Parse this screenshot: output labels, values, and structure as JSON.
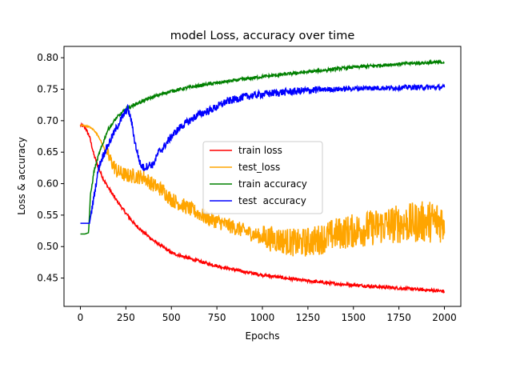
{
  "chart_data": {
    "type": "line",
    "title": "model Loss, accuracy over time",
    "xlabel": "Epochs",
    "ylabel": "Loss & accuracy",
    "xlim": [
      -90,
      2090
    ],
    "ylim": [
      0.405,
      0.818
    ],
    "xticks": [
      0,
      250,
      500,
      750,
      1000,
      1250,
      1500,
      1750,
      2000
    ],
    "yticks": [
      0.45,
      0.5,
      0.55,
      0.6,
      0.65,
      0.7,
      0.75,
      0.8
    ],
    "ytick_labels": [
      "0.45",
      "0.50",
      "0.55",
      "0.60",
      "0.65",
      "0.70",
      "0.75",
      "0.80"
    ],
    "grid": false,
    "legend_position": "center",
    "series": [
      {
        "name": "train loss",
        "color": "#ff0000",
        "noise": 0.0025,
        "x": [
          0,
          25,
          50,
          75,
          100,
          125,
          150,
          200,
          250,
          300,
          350,
          400,
          450,
          500,
          600,
          700,
          800,
          900,
          1000,
          1100,
          1200,
          1300,
          1400,
          1500,
          1600,
          1700,
          1800,
          1900,
          2000
        ],
        "y": [
          0.693,
          0.69,
          0.675,
          0.645,
          0.625,
          0.608,
          0.595,
          0.573,
          0.553,
          0.535,
          0.522,
          0.51,
          0.5,
          0.49,
          0.481,
          0.473,
          0.466,
          0.46,
          0.455,
          0.451,
          0.447,
          0.444,
          0.441,
          0.439,
          0.437,
          0.435,
          0.433,
          0.431,
          0.429
        ]
      },
      {
        "name": "test_loss",
        "color": "#ffa500",
        "noise": 0.012,
        "x": [
          0,
          25,
          50,
          75,
          100,
          125,
          150,
          200,
          250,
          300,
          350,
          400,
          450,
          500,
          600,
          700,
          800,
          900,
          1000,
          1100,
          1200,
          1300,
          1400,
          1500,
          1600,
          1700,
          1800,
          1900,
          2000
        ],
        "y": [
          0.693,
          0.692,
          0.69,
          0.685,
          0.675,
          0.66,
          0.645,
          0.62,
          0.613,
          0.612,
          0.61,
          0.598,
          0.59,
          0.575,
          0.56,
          0.545,
          0.535,
          0.525,
          0.515,
          0.51,
          0.505,
          0.51,
          0.52,
          0.525,
          0.53,
          0.535,
          0.537,
          0.54,
          0.54
        ]
      },
      {
        "name": "train accuracy",
        "color": "#008000",
        "noise": 0.0025,
        "x": [
          0,
          25,
          45,
          55,
          75,
          100,
          125,
          150,
          200,
          250,
          300,
          350,
          400,
          500,
          600,
          700,
          800,
          900,
          1000,
          1100,
          1200,
          1300,
          1400,
          1500,
          1600,
          1700,
          1800,
          1900,
          2000
        ],
        "y": [
          0.52,
          0.52,
          0.522,
          0.58,
          0.62,
          0.645,
          0.665,
          0.685,
          0.705,
          0.718,
          0.726,
          0.732,
          0.738,
          0.747,
          0.753,
          0.758,
          0.762,
          0.766,
          0.77,
          0.773,
          0.776,
          0.779,
          0.782,
          0.785,
          0.787,
          0.789,
          0.791,
          0.792,
          0.793
        ]
      },
      {
        "name": "test  accuracy",
        "color": "#0000ff",
        "noise": 0.006,
        "x": [
          0,
          25,
          50,
          75,
          100,
          125,
          150,
          200,
          230,
          260,
          280,
          300,
          330,
          350,
          380,
          400,
          430,
          450,
          500,
          550,
          600,
          650,
          700,
          750,
          800,
          900,
          1000,
          1100,
          1200,
          1300,
          1400,
          1500,
          1600,
          1700,
          1800,
          1900,
          2000
        ],
        "y": [
          0.537,
          0.537,
          0.537,
          0.58,
          0.625,
          0.645,
          0.66,
          0.69,
          0.705,
          0.72,
          0.7,
          0.665,
          0.63,
          0.625,
          0.63,
          0.63,
          0.65,
          0.655,
          0.675,
          0.69,
          0.7,
          0.71,
          0.715,
          0.722,
          0.73,
          0.738,
          0.742,
          0.745,
          0.747,
          0.749,
          0.75,
          0.751,
          0.752,
          0.752,
          0.753,
          0.753,
          0.753
        ]
      }
    ]
  }
}
